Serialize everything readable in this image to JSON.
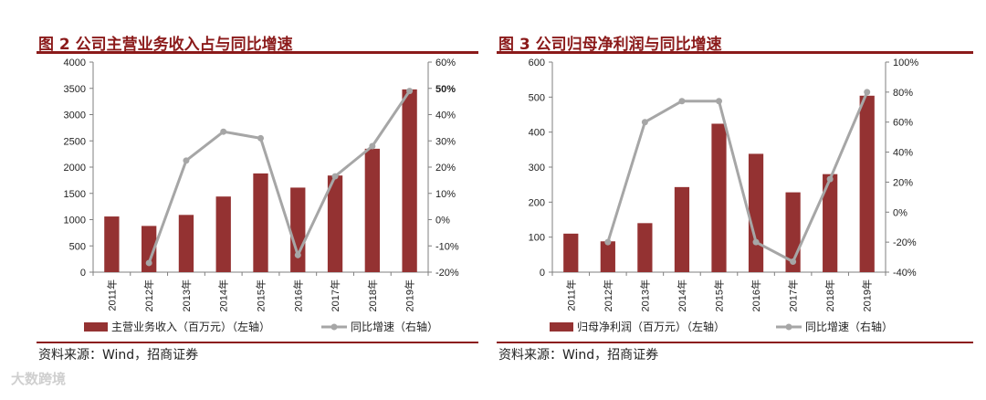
{
  "charts": [
    {
      "title": "图 2 公司主营业务收入占与同比增速",
      "source": "资料来源：Wind，招商证券",
      "chart_data": {
        "type": "bar",
        "categories": [
          "2011年",
          "2012年",
          "2013年",
          "2014年",
          "2015年",
          "2016年",
          "2017年",
          "2018年",
          "2019年"
        ],
        "series": [
          {
            "name": "主营业务收入（百万元）（左轴）",
            "type": "bar",
            "axis": "left",
            "color": "#943232",
            "values": [
              1060,
              880,
              1090,
              1440,
              1880,
              1610,
              1840,
              2350,
              3480
            ]
          },
          {
            "name": "同比增速（右轴）",
            "type": "line",
            "axis": "right",
            "color": "#a6a6a6",
            "values": [
              null,
              -16.5,
              22.5,
              33.5,
              31.0,
              -13.5,
              16.5,
              28.0,
              49.0
            ]
          }
        ],
        "left_axis": {
          "min": 0,
          "max": 4000,
          "ticks": [
            "0",
            "500",
            "1000",
            "1500",
            "2000",
            "2500",
            "3000",
            "3500",
            "4000"
          ]
        },
        "right_axis": {
          "min": -20,
          "max": 60,
          "ticks": [
            "-20%",
            "-10%",
            "0%",
            "10%",
            "20%",
            "30%",
            "40%",
            "50%",
            "60%"
          ],
          "bold_tick": "50%"
        },
        "grid": false,
        "legend": "bottom"
      }
    },
    {
      "title": "图 3 公司归母净利润与同比增速",
      "source": "资料来源：Wind，招商证券",
      "chart_data": {
        "type": "bar",
        "categories": [
          "2011年",
          "2012年",
          "2013年",
          "2014年",
          "2015年",
          "2016年",
          "2017年",
          "2018年",
          "2019年"
        ],
        "series": [
          {
            "name": "归母净利润（百万元）（左轴）",
            "type": "bar",
            "axis": "left",
            "color": "#943232",
            "values": [
              110,
              88,
              140,
              243,
              424,
              338,
              228,
              280,
              504
            ]
          },
          {
            "name": "同比增速（右轴）",
            "type": "line",
            "axis": "right",
            "color": "#a6a6a6",
            "values": [
              null,
              -20,
              60,
              74,
              74,
              -20,
              -33,
              22,
              80
            ]
          }
        ],
        "left_axis": {
          "min": 0,
          "max": 600,
          "ticks": [
            "0",
            "100",
            "200",
            "300",
            "400",
            "500",
            "600"
          ]
        },
        "right_axis": {
          "min": -40,
          "max": 100,
          "ticks": [
            "-40%",
            "-20%",
            "0%",
            "20%",
            "40%",
            "60%",
            "80%",
            "100%"
          ]
        },
        "grid": false,
        "legend": "bottom"
      }
    }
  ],
  "watermark": "大数跨境"
}
